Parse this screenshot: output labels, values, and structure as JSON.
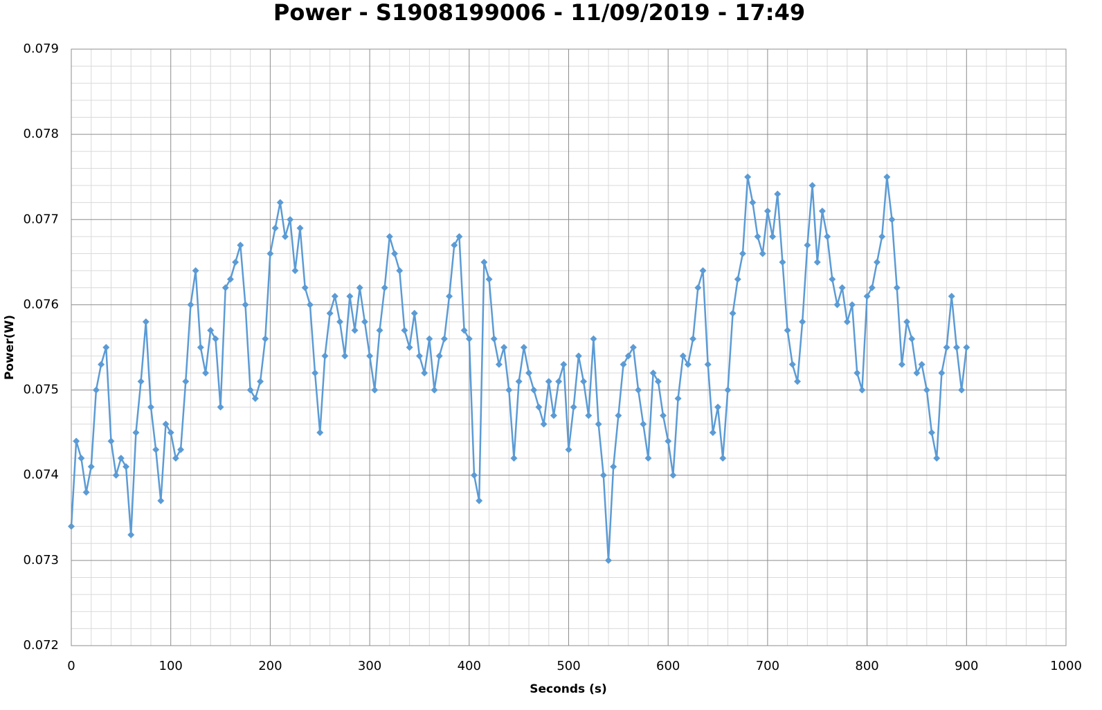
{
  "chart_data": {
    "type": "line",
    "title": "Power - S1908199006 - 11/09/2019 - 17:49",
    "xlabel": "Seconds (s)",
    "ylabel": "Power(W)",
    "xlim": [
      0,
      1000
    ],
    "xticks": [
      0,
      100,
      200,
      300,
      400,
      500,
      600,
      700,
      800,
      900,
      1000
    ],
    "ylim": [
      0.072,
      0.079
    ],
    "yticks": [
      0.072,
      0.073,
      0.074,
      0.075,
      0.076,
      0.077,
      0.078,
      0.079
    ],
    "grid": true,
    "minor_grid": 5,
    "markers": "diamond",
    "x": [
      0,
      5,
      10,
      15,
      20,
      25,
      30,
      35,
      40,
      45,
      50,
      55,
      60,
      65,
      70,
      75,
      80,
      85,
      90,
      95,
      100,
      105,
      110,
      115,
      120,
      125,
      130,
      135,
      140,
      145,
      150,
      155,
      160,
      165,
      170,
      175,
      180,
      185,
      190,
      195,
      200,
      205,
      210,
      215,
      220,
      225,
      230,
      235,
      240,
      245,
      250,
      255,
      260,
      265,
      270,
      275,
      280,
      285,
      290,
      295,
      300,
      305,
      310,
      315,
      320,
      325,
      330,
      335,
      340,
      345,
      350,
      355,
      360,
      365,
      370,
      375,
      380,
      385,
      390,
      395,
      400,
      405,
      410,
      415,
      420,
      425,
      430,
      435,
      440,
      445,
      450,
      455,
      460,
      465,
      470,
      475,
      480,
      485,
      490,
      495,
      500,
      505,
      510,
      515,
      520,
      525,
      530,
      535,
      540,
      545,
      550,
      555,
      560,
      565,
      570,
      575,
      580,
      585,
      590,
      595,
      600,
      605,
      610,
      615,
      620,
      625,
      630,
      635,
      640,
      645,
      650,
      655,
      660,
      665,
      670,
      675,
      680,
      685,
      690,
      695,
      700,
      705,
      710,
      715,
      720,
      725,
      730,
      735,
      740,
      745,
      750,
      755,
      760,
      765,
      770,
      775,
      780,
      785,
      790,
      795,
      800,
      805,
      810,
      815,
      820,
      825,
      830,
      835,
      840,
      845,
      850,
      855,
      860,
      865,
      870,
      875,
      880,
      885,
      890,
      895,
      900
    ],
    "series": [
      {
        "name": "Power",
        "color": "#5b9bd5",
        "values": [
          0.0734,
          0.0744,
          0.0742,
          0.0738,
          0.0741,
          0.075,
          0.0753,
          0.0755,
          0.0744,
          0.074,
          0.0742,
          0.0741,
          0.0733,
          0.0745,
          0.0751,
          0.0758,
          0.0748,
          0.0743,
          0.0737,
          0.0746,
          0.0745,
          0.0742,
          0.0743,
          0.0751,
          0.076,
          0.0764,
          0.0755,
          0.0752,
          0.0757,
          0.0756,
          0.0748,
          0.0762,
          0.0763,
          0.0765,
          0.0767,
          0.076,
          0.075,
          0.0749,
          0.0751,
          0.0756,
          0.0766,
          0.0769,
          0.0772,
          0.0768,
          0.077,
          0.0764,
          0.0769,
          0.0762,
          0.076,
          0.0752,
          0.0745,
          0.0754,
          0.0759,
          0.0761,
          0.0758,
          0.0754,
          0.0761,
          0.0757,
          0.0762,
          0.0758,
          0.0754,
          0.075,
          0.0757,
          0.0762,
          0.0768,
          0.0766,
          0.0764,
          0.0757,
          0.0755,
          0.0759,
          0.0754,
          0.0752,
          0.0756,
          0.075,
          0.0754,
          0.0756,
          0.0761,
          0.0767,
          0.0768,
          0.0757,
          0.0756,
          0.074,
          0.0737,
          0.0765,
          0.0763,
          0.0756,
          0.0753,
          0.0755,
          0.075,
          0.0742,
          0.0751,
          0.0755,
          0.0752,
          0.075,
          0.0748,
          0.0746,
          0.0751,
          0.0747,
          0.0751,
          0.0753,
          0.0743,
          0.0748,
          0.0754,
          0.0751,
          0.0747,
          0.0756,
          0.0746,
          0.074,
          0.073,
          0.0741,
          0.0747,
          0.0753,
          0.0754,
          0.0755,
          0.075,
          0.0746,
          0.0742,
          0.0752,
          0.0751,
          0.0747,
          0.0744,
          0.074,
          0.0749,
          0.0754,
          0.0753,
          0.0756,
          0.0762,
          0.0764,
          0.0753,
          0.0745,
          0.0748,
          0.0742,
          0.075,
          0.0759,
          0.0763,
          0.0766,
          0.0775,
          0.0772,
          0.0768,
          0.0766,
          0.0771,
          0.0768,
          0.0773,
          0.0765,
          0.0757,
          0.0753,
          0.0751,
          0.0758,
          0.0767,
          0.0774,
          0.0765,
          0.0771,
          0.0768,
          0.0763,
          0.076,
          0.0762,
          0.0758,
          0.076,
          0.0752,
          0.075,
          0.0761,
          0.0762,
          0.0765,
          0.0768,
          0.0775,
          0.077,
          0.0762,
          0.0753,
          0.0758,
          0.0756,
          0.0752,
          0.0753,
          0.075,
          0.0745,
          0.0742,
          0.0752,
          0.0755,
          0.0761,
          0.0755,
          0.075,
          0.0755
        ]
      }
    ]
  }
}
